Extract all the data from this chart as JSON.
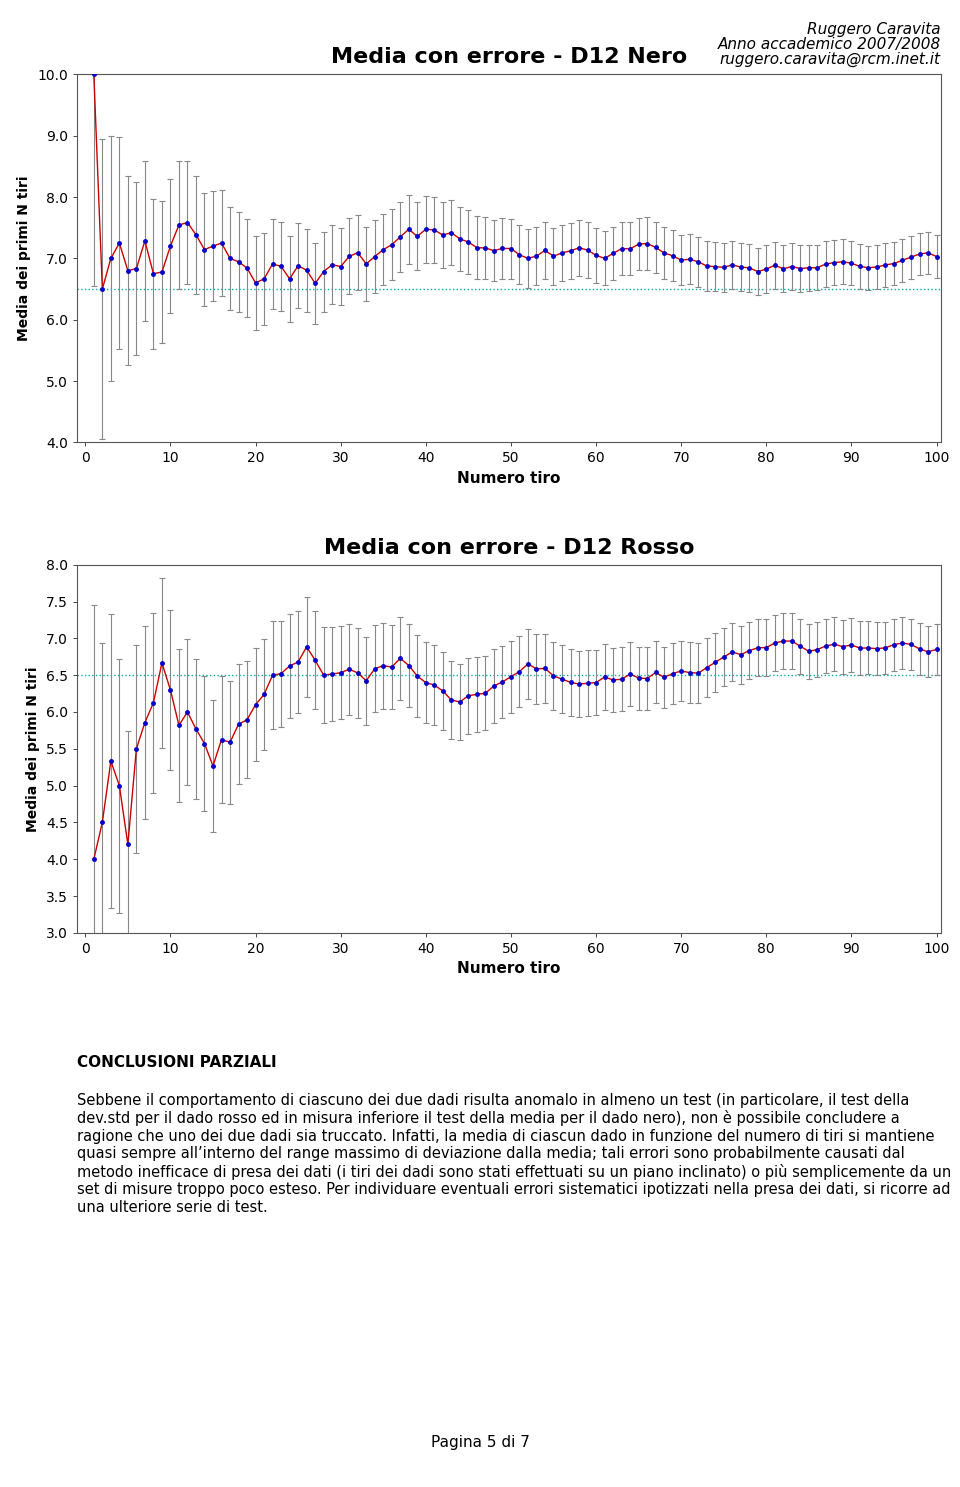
{
  "title_nero": "Media con errore - D12 Nero",
  "title_rosso": "Media con errore - D12 Rosso",
  "xlabel": "Numero tiro",
  "ylabel": "Media dei primi N tiri",
  "header_line1": "Ruggero Caravita",
  "header_line2": "Anno accademico 2007/2008",
  "header_line3": "ruggero.caravita@rcm.inet.it",
  "nero_hline": 6.5,
  "rosso_hline": 6.5,
  "nero_ylim": [
    4.0,
    10.0
  ],
  "rosso_ylim": [
    3.0,
    8.0
  ],
  "nero_yticks": [
    4.0,
    5.0,
    6.0,
    7.0,
    8.0,
    9.0,
    10.0
  ],
  "rosso_yticks": [
    3.0,
    3.5,
    4.0,
    4.5,
    5.0,
    5.5,
    6.0,
    6.5,
    7.0,
    7.5,
    8.0
  ],
  "xticks": [
    0,
    10,
    20,
    30,
    40,
    50,
    60,
    70,
    80,
    90,
    100
  ],
  "xlim": [
    0,
    100
  ],
  "line_color": "#cc0000",
  "dot_color": "#0000cc",
  "err_color": "#888888",
  "hline_color": "#00aaaa",
  "footer_text": "Pagina 5 di 7",
  "conclusion_title": "CONCLUSIONI PARZIALI",
  "conclusion_body": "Sebbene il comportamento di ciascuno dei due dadi risulta anomalo in almeno un test (in particolare, il test della dev.std per il dado rosso ed in misura inferiore il test della media per il dado nero), non è possibile concludere a ragione che uno dei due dadi sia truccato. Infatti, la media di ciascun dado in funzione del numero di tiri si mantiene quasi sempre all’interno del range massimo di deviazione dalla media; tali errori sono probabilmente causati dal metodo inefficace di presa dei dati (i tiri dei dadi sono stati effettuati su un piano inclinato) o più semplicemente da un set di misure troppo poco esteso. Per individuare eventuali errori sistematici ipotizzati nella presa dei dati, si ricorre ad una ulteriore serie di test."
}
